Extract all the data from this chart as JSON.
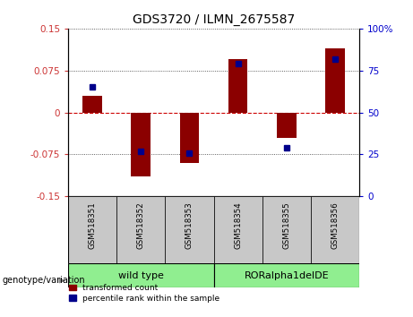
{
  "title": "GDS3720 / ILMN_2675587",
  "samples": [
    "GSM518351",
    "GSM518352",
    "GSM518353",
    "GSM518354",
    "GSM518355",
    "GSM518356"
  ],
  "transformed_count": [
    0.03,
    -0.115,
    -0.09,
    0.095,
    -0.045,
    0.115
  ],
  "percentile_rank": [
    65,
    27,
    26,
    79,
    29,
    82
  ],
  "ylim_left": [
    -0.15,
    0.15
  ],
  "ylim_right": [
    0,
    100
  ],
  "yticks_left": [
    -0.15,
    -0.075,
    0,
    0.075,
    0.15
  ],
  "yticks_right": [
    0,
    25,
    50,
    75,
    100
  ],
  "ytick_labels_left": [
    "-0.15",
    "-0.075",
    "0",
    "0.075",
    "0.15"
  ],
  "ytick_labels_right": [
    "0",
    "25",
    "50",
    "75",
    "100%"
  ],
  "bar_color": "#8B0000",
  "dot_color": "#00008B",
  "hline0_color": "#CC0000",
  "hline0_style": "--",
  "hline_color": "#333333",
  "hline_style": ":",
  "bg_color": "#FFFFFF",
  "left_tick_color": "#CC3333",
  "right_tick_color": "#0000CC",
  "legend_bar_label": "transformed count",
  "legend_dot_label": "percentile rank within the sample",
  "genotype_label": "genotype/variation",
  "group_labels": [
    "wild type",
    "RORalpha1delDE"
  ],
  "group_bg_color": "#90EE90",
  "sample_box_color": "#C8C8C8",
  "bar_width": 0.4,
  "dot_size": 4
}
